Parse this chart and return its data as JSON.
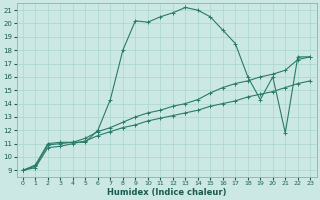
{
  "xlabel": "Humidex (Indice chaleur)",
  "background_color": "#cce8e4",
  "grid_color": "#b0d8d2",
  "line_color": "#2a7a6a",
  "xlim": [
    -0.5,
    23.5
  ],
  "ylim": [
    8.5,
    21.5
  ],
  "xticks": [
    0,
    1,
    2,
    3,
    4,
    5,
    6,
    7,
    8,
    9,
    10,
    11,
    12,
    13,
    14,
    15,
    16,
    17,
    18,
    19,
    20,
    21,
    22,
    23
  ],
  "yticks": [
    9,
    10,
    11,
    12,
    13,
    14,
    15,
    16,
    17,
    18,
    19,
    20,
    21
  ],
  "line1_x": [
    0,
    1,
    2,
    3,
    4,
    5,
    6,
    7,
    8,
    9,
    10,
    11,
    12,
    13,
    14,
    15,
    16,
    17,
    18,
    19,
    20,
    21,
    22,
    23
  ],
  "line1_y": [
    9.0,
    9.4,
    11.0,
    11.1,
    11.1,
    11.1,
    12.0,
    14.3,
    18.0,
    20.2,
    20.1,
    20.5,
    20.8,
    21.2,
    21.0,
    20.5,
    19.5,
    18.5,
    16.0,
    14.3,
    16.0,
    11.8,
    17.5,
    17.5
  ],
  "line2_x": [
    0,
    1,
    2,
    3,
    4,
    5,
    6,
    7,
    8,
    9,
    10,
    11,
    12,
    13,
    14,
    15,
    16,
    17,
    18,
    19,
    20,
    21,
    22,
    23
  ],
  "line2_y": [
    9.0,
    9.3,
    10.9,
    11.0,
    11.1,
    11.4,
    11.9,
    12.2,
    12.6,
    13.0,
    13.3,
    13.5,
    13.8,
    14.0,
    14.3,
    14.8,
    15.2,
    15.5,
    15.7,
    16.0,
    16.2,
    16.5,
    17.3,
    17.5
  ],
  "line3_x": [
    0,
    1,
    2,
    3,
    4,
    5,
    6,
    7,
    8,
    9,
    10,
    11,
    12,
    13,
    14,
    15,
    16,
    17,
    18,
    19,
    20,
    21,
    22,
    23
  ],
  "line3_y": [
    9.0,
    9.2,
    10.7,
    10.8,
    11.0,
    11.2,
    11.6,
    11.9,
    12.2,
    12.4,
    12.7,
    12.9,
    13.1,
    13.3,
    13.5,
    13.8,
    14.0,
    14.2,
    14.5,
    14.7,
    14.9,
    15.2,
    15.5,
    15.7
  ]
}
